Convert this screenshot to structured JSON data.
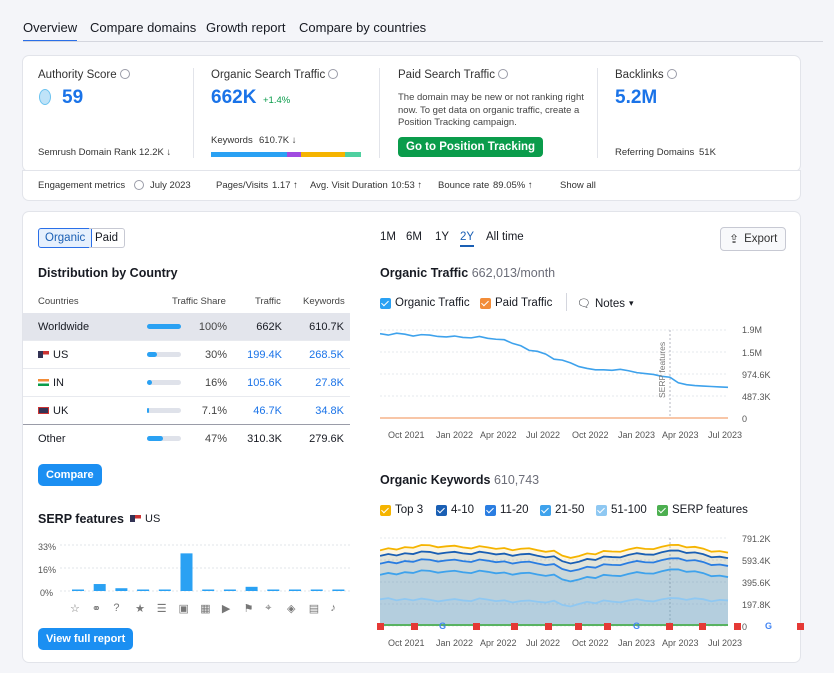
{
  "tabs": [
    "Overview",
    "Compare domains",
    "Growth report",
    "Compare by countries"
  ],
  "summary": {
    "authority": {
      "label": "Authority Score",
      "value": "59",
      "rank_label": "Semrush Domain Rank",
      "rank_value": "12.2K ↓"
    },
    "organic": {
      "label": "Organic Search Traffic",
      "value": "662K",
      "delta": "+1.4%",
      "kw_label": "Keywords",
      "kw_value": "610.7K ↓"
    },
    "paid": {
      "label": "Paid Search Traffic",
      "note": "The domain may be new or not ranking right now. To get data on organic traffic, create a Position Tracking campaign.",
      "button": "Go to Position Tracking"
    },
    "backlinks": {
      "label": "Backlinks",
      "value": "5.2M",
      "ref_label": "Referring Domains",
      "ref_value": "51K"
    },
    "engagement": {
      "label": "Engagement metrics",
      "month": "July 2023",
      "pages_label": "Pages/Visits",
      "pages_value": "1.17 ↑",
      "duration_label": "Avg. Visit Duration",
      "duration_value": "10:53 ↑",
      "bounce_label": "Bounce rate",
      "bounce_value": "89.05% ↑",
      "show_all": "Show all"
    }
  },
  "toggle": {
    "organic": "Organic",
    "paid": "Paid"
  },
  "distribution": {
    "title": "Distribution by Country",
    "headers": {
      "countries": "Countries",
      "share": "Traffic Share",
      "traffic": "Traffic",
      "keywords": "Keywords"
    },
    "rows": [
      {
        "country": "Worldwide",
        "share": "100%",
        "share_frac": 1.0,
        "traffic": "662K",
        "keywords": "610.7K",
        "flag": "",
        "highlight": true
      },
      {
        "country": "US",
        "share": "30%",
        "share_frac": 0.3,
        "traffic": "199.4K",
        "keywords": "268.5K",
        "flag": "us"
      },
      {
        "country": "IN",
        "share": "16%",
        "share_frac": 0.16,
        "traffic": "105.6K",
        "keywords": "27.8K",
        "flag": "in"
      },
      {
        "country": "UK",
        "share": "7.1%",
        "share_frac": 0.071,
        "traffic": "46.7K",
        "keywords": "34.8K",
        "flag": "uk"
      },
      {
        "country": "Other",
        "share": "47%",
        "share_frac": 0.47,
        "traffic": "310.3K",
        "keywords": "279.6K",
        "flag": ""
      }
    ],
    "compare_button": "Compare"
  },
  "serp": {
    "title": "SERP features",
    "country": "US",
    "yticks": [
      "33%",
      "16%",
      "0%"
    ],
    "view_button": "View full report",
    "icons": [
      "star-icon",
      "link-icon",
      "question-icon",
      "star-filled-icon",
      "list-icon",
      "image-icon",
      "gallery-icon",
      "video-icon",
      "flag-icon",
      "pin-icon",
      "graduation-icon",
      "news-icon",
      "twitter-icon"
    ]
  },
  "ranges": [
    "1M",
    "6M",
    "1Y",
    "2Y",
    "All time"
  ],
  "active_range": "2Y",
  "export": "Export",
  "organic_traffic": {
    "title": "Organic Traffic",
    "value": "662,013/month",
    "legend": {
      "organic": "Organic Traffic",
      "paid": "Paid Traffic",
      "notes": "Notes"
    },
    "serp_label": "SERP features",
    "yticks": [
      "1.9M",
      "1.5M",
      "974.6K",
      "487.3K",
      "0"
    ],
    "xticks": [
      "Oct 2021",
      "Jan 2022",
      "Apr 2022",
      "Jul 2022",
      "Oct 2022",
      "Jan 2023",
      "Apr 2023",
      "Jul 2023"
    ]
  },
  "organic_keywords": {
    "title": "Organic Keywords",
    "value": "610,743",
    "legend": [
      "Top 3",
      "4-10",
      "11-20",
      "21-50",
      "51-100",
      "SERP features"
    ],
    "legend_colors": [
      "#f5b400",
      "#1a5fb4",
      "#2a7de1",
      "#3ea2ec",
      "#8fc8f2",
      "#4caf50"
    ],
    "yticks": [
      "791.2K",
      "593.4K",
      "395.6K",
      "197.8K",
      "0"
    ],
    "xticks": [
      "Oct 2021",
      "Jan 2022",
      "Apr 2022",
      "Jul 2022",
      "Oct 2022",
      "Jan 2023",
      "Apr 2023",
      "Jul 2023"
    ]
  },
  "chart_data": [
    {
      "type": "line",
      "title": "Organic Traffic",
      "x": [
        "Oct 2021",
        "Jan 2022",
        "Apr 2022",
        "Jul 2022",
        "Oct 2022",
        "Jan 2023",
        "Apr 2023",
        "Jul 2023"
      ],
      "series": [
        {
          "name": "Organic Traffic",
          "values": [
            1820000,
            1760000,
            1720000,
            1450000,
            1050000,
            940000,
            680000,
            662000
          ]
        },
        {
          "name": "Paid Traffic",
          "values": [
            0,
            0,
            0,
            0,
            0,
            0,
            0,
            0
          ]
        }
      ],
      "ylim": [
        0,
        1900000
      ]
    },
    {
      "type": "area",
      "title": "Organic Keywords",
      "x": [
        "Oct 2021",
        "Jan 2022",
        "Apr 2022",
        "Jul 2022",
        "Oct 2022",
        "Jan 2023",
        "Apr 2023",
        "Jul 2023"
      ],
      "series": [
        {
          "name": "Top 3",
          "values": [
            680000,
            720000,
            700000,
            690000,
            640000,
            680000,
            720000,
            660000
          ]
        },
        {
          "name": "4-10",
          "values": [
            630000,
            660000,
            650000,
            640000,
            590000,
            630000,
            670000,
            610000
          ]
        },
        {
          "name": "11-20",
          "values": [
            560000,
            590000,
            580000,
            570000,
            520000,
            560000,
            600000,
            540000
          ]
        },
        {
          "name": "21-50",
          "values": [
            460000,
            490000,
            480000,
            470000,
            430000,
            460000,
            500000,
            440000
          ]
        },
        {
          "name": "51-100",
          "values": [
            240000,
            230000,
            230000,
            220000,
            210000,
            220000,
            240000,
            230000
          ]
        }
      ],
      "ylim": [
        0,
        791200
      ]
    },
    {
      "type": "bar",
      "title": "SERP features",
      "categories": [
        "1",
        "2",
        "3",
        "4",
        "5",
        "6",
        "7",
        "8",
        "9",
        "10",
        "11",
        "12",
        "13"
      ],
      "values": [
        1,
        5,
        2,
        1,
        1,
        27,
        0,
        0,
        3,
        0,
        1,
        0,
        0
      ],
      "ylim": [
        0,
        33
      ]
    }
  ]
}
